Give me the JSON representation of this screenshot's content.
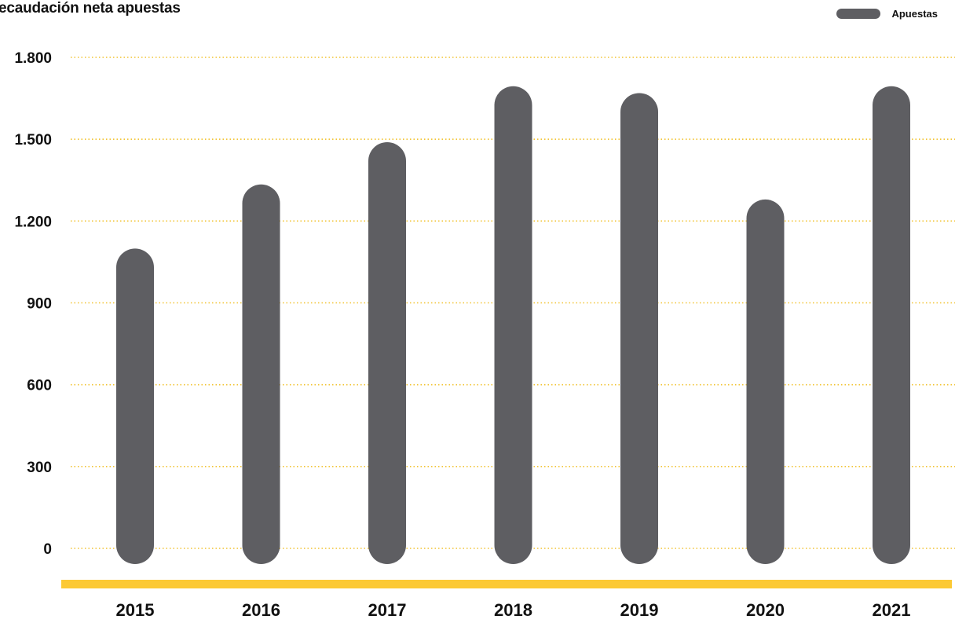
{
  "title": "ecaudación neta apuestas",
  "legend": {
    "label": "Apuestas",
    "placement": "top-right"
  },
  "colors": {
    "bar": "#5e5e62",
    "grid": "#f2c330",
    "baseline": "#fcc934",
    "text": "#111111"
  },
  "chart_data": {
    "type": "bar",
    "categories": [
      "2015",
      "2016",
      "2017",
      "2018",
      "2019",
      "2020",
      "2021"
    ],
    "series": [
      {
        "name": "Apuestas",
        "values": [
          1030,
          1265,
          1420,
          1625,
          1600,
          1210,
          1625
        ]
      }
    ],
    "yticks": [
      0,
      300,
      600,
      900,
      1200,
      1500,
      1800
    ],
    "ytick_labels": [
      "0",
      "300",
      "600",
      "900",
      "1.200",
      "1.500",
      "1.800"
    ],
    "ylim": [
      0,
      1800
    ],
    "grid": true,
    "grid_style": "dotted",
    "legend_position": "top-right",
    "bar_style": "rounded"
  }
}
